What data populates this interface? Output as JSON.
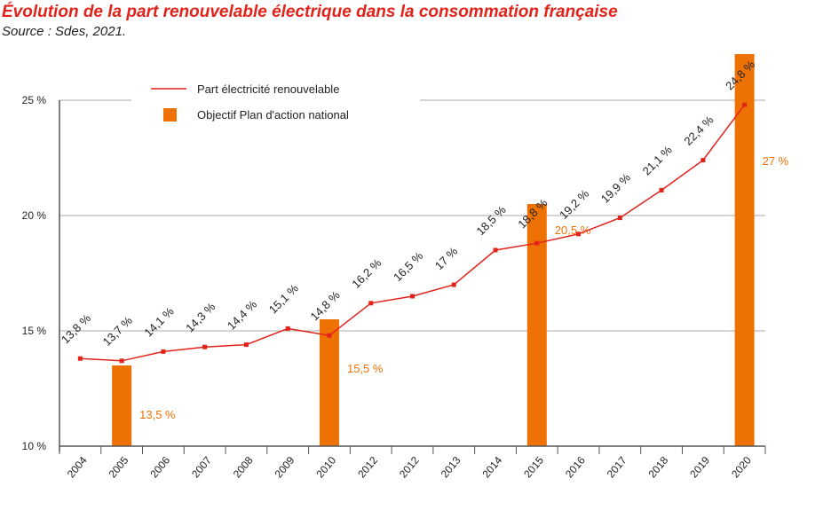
{
  "title": "Évolution de la part renouvelable électrique dans la consommation française",
  "subtitle": "Source : Sdes, 2021.",
  "chart_data": {
    "type": "bar+line",
    "categories": [
      "2004",
      "2005",
      "2006",
      "2007",
      "2008",
      "2009",
      "2010",
      "2012",
      "2012",
      "2013",
      "2014",
      "2015",
      "2016",
      "2017",
      "2018",
      "2019",
      "2020"
    ],
    "series": [
      {
        "name": "Part électricité renouvelable",
        "type": "line",
        "color": "#e2231a",
        "values": [
          13.8,
          13.7,
          14.1,
          14.3,
          14.4,
          15.1,
          14.8,
          16.2,
          16.5,
          17,
          18.5,
          18.8,
          19.2,
          19.9,
          21.1,
          22.4,
          24.8
        ],
        "labels": [
          "13,8 %",
          "13,7 %",
          "14,1 %",
          "14,3 %",
          "14,4 %",
          "15,1 %",
          "14,8 %",
          "16,2 %",
          "16,5 %",
          "17 %",
          "18,5 %",
          "18,8 %",
          "19,2 %",
          "19,9 %",
          "21,1 %",
          "22,4 %",
          "24,8 %"
        ]
      },
      {
        "name": "Objectif Plan d'action national",
        "type": "bar",
        "color": "#ee7203",
        "values": [
          null,
          13.5,
          null,
          null,
          null,
          null,
          15.5,
          null,
          null,
          null,
          null,
          20.5,
          null,
          null,
          null,
          null,
          27
        ],
        "labels": [
          null,
          "13,5 %",
          null,
          null,
          null,
          null,
          "15,5 %",
          null,
          null,
          null,
          null,
          "20,5 %",
          null,
          null,
          null,
          null,
          "27 %"
        ]
      }
    ],
    "yticks": [
      "10 %",
      "15 %",
      "20 %",
      "25 %"
    ],
    "ytick_values": [
      10,
      15,
      20,
      25
    ],
    "ylim": [
      10,
      25
    ],
    "grid": true,
    "legend": "top-left"
  }
}
